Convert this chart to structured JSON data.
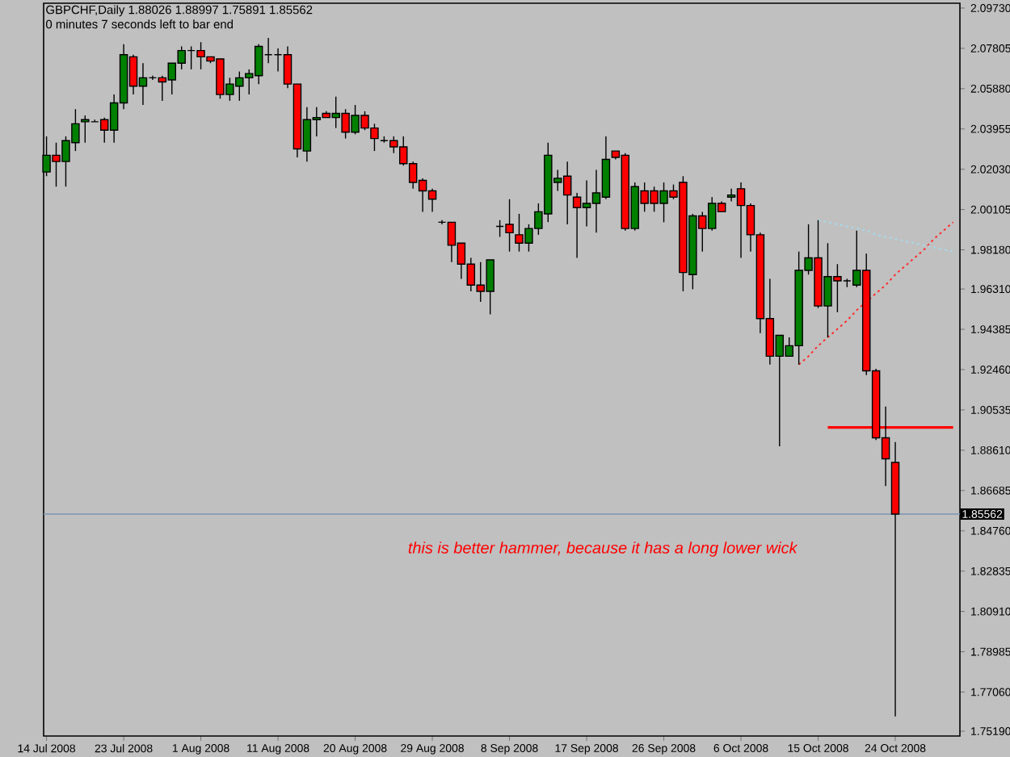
{
  "chart_data": {
    "type": "candlestick",
    "title": "GBPCHF,Daily  1.88026 1.88997 1.75891 1.85562",
    "subtitle": "0 minutes 7 seconds left to bar end",
    "categories": [
      "14 Jul 2008",
      null,
      null,
      null,
      null,
      null,
      null,
      null,
      "23 Jul 2008",
      null,
      null,
      null,
      null,
      null,
      null,
      null,
      "1 Aug 2008",
      null,
      null,
      null,
      null,
      null,
      null,
      null,
      "11 Aug 2008",
      null,
      null,
      null,
      null,
      null,
      null,
      null,
      "20 Aug 2008",
      null,
      null,
      null,
      null,
      null,
      null,
      null,
      "29 Aug 2008",
      null,
      null,
      null,
      null,
      null,
      null,
      null,
      "8 Sep 2008",
      null,
      null,
      null,
      null,
      null,
      null,
      null,
      "17 Sep 2008",
      null,
      null,
      null,
      null,
      null,
      null,
      null,
      "26 Sep 2008",
      null,
      null,
      null,
      null,
      null,
      null,
      null,
      "6 Oct 2008",
      null,
      null,
      null,
      null,
      null,
      null,
      null,
      "15 Oct 2008",
      null,
      null,
      null,
      null,
      null,
      null,
      null,
      "24 Oct 2008",
      null,
      null,
      null,
      null,
      null,
      null
    ],
    "ohlc": [
      [
        2.019,
        2.036,
        2.017,
        2.027
      ],
      [
        2.027,
        2.033,
        2.012,
        2.024
      ],
      [
        2.024,
        2.036,
        2.012,
        2.034
      ],
      [
        2.033,
        2.049,
        2.029,
        2.042
      ],
      [
        2.043,
        2.046,
        2.033,
        2.044
      ],
      [
        2.043,
        2.044,
        2.043,
        2.043
      ],
      [
        2.044,
        2.045,
        2.033,
        2.039
      ],
      [
        2.039,
        2.056,
        2.033,
        2.052
      ],
      [
        2.052,
        2.08,
        2.049,
        2.075
      ],
      [
        2.074,
        2.075,
        2.056,
        2.06
      ],
      [
        2.06,
        2.071,
        2.051,
        2.064
      ],
      [
        2.064,
        2.065,
        2.063,
        2.064
      ],
      [
        2.064,
        2.065,
        2.053,
        2.062
      ],
      [
        2.063,
        2.071,
        2.056,
        2.071
      ],
      [
        2.071,
        2.079,
        2.068,
        2.077
      ],
      [
        2.077,
        2.079,
        2.068,
        2.077
      ],
      [
        2.077,
        2.081,
        2.068,
        2.074
      ],
      [
        2.074,
        2.074,
        2.071,
        2.072
      ],
      [
        2.073,
        2.073,
        2.054,
        2.056
      ],
      [
        2.056,
        2.064,
        2.053,
        2.061
      ],
      [
        2.06,
        2.067,
        2.053,
        2.064
      ],
      [
        2.064,
        2.068,
        2.056,
        2.066
      ],
      [
        2.065,
        2.08,
        2.061,
        2.079
      ],
      [
        2.075,
        2.083,
        2.071,
        2.075
      ],
      [
        2.075,
        2.078,
        2.067,
        2.075
      ],
      [
        2.075,
        2.079,
        2.059,
        2.061
      ],
      [
        2.061,
        2.061,
        2.026,
        2.03
      ],
      [
        2.029,
        2.05,
        2.024,
        2.044
      ],
      [
        2.044,
        2.05,
        2.036,
        2.045
      ],
      [
        2.047,
        2.048,
        2.045,
        2.045
      ],
      [
        2.045,
        2.055,
        2.04,
        2.047
      ],
      [
        2.047,
        2.049,
        2.035,
        2.038
      ],
      [
        2.038,
        2.051,
        2.037,
        2.046
      ],
      [
        2.046,
        2.048,
        2.039,
        2.04
      ],
      [
        2.04,
        2.042,
        2.029,
        2.035
      ],
      [
        2.034,
        2.036,
        2.033,
        2.034
      ],
      [
        2.034,
        2.036,
        2.028,
        2.031
      ],
      [
        2.031,
        2.036,
        2.022,
        2.023
      ],
      [
        2.023,
        2.024,
        2.011,
        2.014
      ],
      [
        2.015,
        2.016,
        2.0,
        2.01
      ],
      [
        2.01,
        2.011,
        2.0,
        2.006
      ],
      [
        1.995,
        1.996,
        1.994,
        1.995
      ],
      [
        1.995,
        1.995,
        1.976,
        1.984
      ],
      [
        1.985,
        1.985,
        1.968,
        1.975
      ],
      [
        1.975,
        1.978,
        1.962,
        1.965
      ],
      [
        1.965,
        1.976,
        1.957,
        1.962
      ],
      [
        1.962,
        1.977,
        1.951,
        1.977
      ],
      [
        1.993,
        1.996,
        1.988,
        1.993
      ],
      [
        1.994,
        2.006,
        1.981,
        1.99
      ],
      [
        1.989,
        1.999,
        1.981,
        1.985
      ],
      [
        1.985,
        1.994,
        1.981,
        1.992
      ],
      [
        1.992,
        2.004,
        1.989,
        2.0
      ],
      [
        1.999,
        2.033,
        1.995,
        2.027
      ],
      [
        2.014,
        2.02,
        2.01,
        2.016
      ],
      [
        2.017,
        2.024,
        1.994,
        2.008
      ],
      [
        2.007,
        2.009,
        1.978,
        2.002
      ],
      [
        2.002,
        2.015,
        1.993,
        2.004
      ],
      [
        2.004,
        2.02,
        1.99,
        2.009
      ],
      [
        2.007,
        2.036,
        2.006,
        2.025
      ],
      [
        2.029,
        2.029,
        2.025,
        2.026
      ],
      [
        2.027,
        2.028,
        1.991,
        1.992
      ],
      [
        1.992,
        2.014,
        1.991,
        2.012
      ],
      [
        2.01,
        2.014,
        2.0,
        2.004
      ],
      [
        2.01,
        2.012,
        2.0,
        2.004
      ],
      [
        2.004,
        2.014,
        1.995,
        2.01
      ],
      [
        2.01,
        2.013,
        2.006,
        2.007
      ],
      [
        2.014,
        2.017,
        1.962,
        1.971
      ],
      [
        1.97,
        1.999,
        1.963,
        1.998
      ],
      [
        1.998,
        2.0,
        1.981,
        1.992
      ],
      [
        1.992,
        2.007,
        1.991,
        2.004
      ],
      [
        2.004,
        2.005,
        2.0,
        2.0
      ],
      [
        2.007,
        2.011,
        2.005,
        2.008
      ],
      [
        2.011,
        2.014,
        1.978,
        2.003
      ],
      [
        2.003,
        2.004,
        1.981,
        1.989
      ],
      [
        1.989,
        1.99,
        1.942,
        1.949
      ],
      [
        1.949,
        1.968,
        1.927,
        1.931
      ],
      [
        1.931,
        1.941,
        1.888,
        1.941
      ],
      [
        1.931,
        1.94,
        1.931,
        1.936
      ],
      [
        1.936,
        1.981,
        1.927,
        1.972
      ],
      [
        1.972,
        1.994,
        1.97,
        1.978
      ],
      [
        1.978,
        1.996,
        1.954,
        1.955
      ],
      [
        1.955,
        1.985,
        1.94,
        1.969
      ],
      [
        1.969,
        1.975,
        1.952,
        1.967
      ],
      [
        1.967,
        1.968,
        1.964,
        1.967
      ],
      [
        1.965,
        1.991,
        1.964,
        1.972
      ],
      [
        1.972,
        1.98,
        1.922,
        1.924
      ],
      [
        1.924,
        1.925,
        1.891,
        1.892
      ],
      [
        1.892,
        1.907,
        1.869,
        1.882
      ],
      [
        1.88026,
        1.88997,
        1.75891,
        1.85562
      ],
      null,
      null,
      null,
      null,
      null,
      null
    ],
    "colors": [
      "#008000",
      "#ff0000",
      "#008000",
      "#008000",
      "#008000",
      "#000000",
      "#ff0000",
      "#008000",
      "#008000",
      "#ff0000",
      "#008000",
      "#000000",
      "#ff0000",
      "#008000",
      "#008000",
      "#000000",
      "#ff0000",
      "#ff0000",
      "#ff0000",
      "#008000",
      "#008000",
      "#008000",
      "#008000",
      "#000000",
      "#000000",
      "#ff0000",
      "#ff0000",
      "#008000",
      "#008000",
      "#ff0000",
      "#008000",
      "#ff0000",
      "#008000",
      "#ff0000",
      "#ff0000",
      "#000000",
      "#ff0000",
      "#ff0000",
      "#ff0000",
      "#ff0000",
      "#ff0000",
      "#000000",
      "#ff0000",
      "#ff0000",
      "#ff0000",
      "#ff0000",
      "#008000",
      "#000000",
      "#ff0000",
      "#ff0000",
      "#008000",
      "#008000",
      "#008000",
      "#008000",
      "#ff0000",
      "#ff0000",
      "#008000",
      "#008000",
      "#008000",
      "#ff0000",
      "#ff0000",
      "#008000",
      "#ff0000",
      "#ff0000",
      "#008000",
      "#ff0000",
      "#ff0000",
      "#008000",
      "#ff0000",
      "#008000",
      "#ff0000",
      "#008000",
      "#ff0000",
      "#ff0000",
      "#ff0000",
      "#ff0000",
      "#008000",
      "#008000",
      "#008000",
      "#008000",
      "#ff0000",
      "#008000",
      "#ff0000",
      "#000000",
      "#008000",
      "#ff0000",
      "#ff0000",
      "#ff0000",
      "#ff0000",
      null,
      null,
      null,
      null,
      null,
      null
    ],
    "series": [
      {
        "type": "line",
        "values": [
          null,
          null,
          null,
          null,
          null,
          null,
          null,
          null,
          null,
          null,
          null,
          null,
          null,
          null,
          null,
          null,
          null,
          null,
          null,
          null,
          null,
          null,
          null,
          null,
          null,
          null,
          null,
          null,
          null,
          null,
          null,
          null,
          null,
          null,
          null,
          null,
          null,
          null,
          null,
          null,
          null,
          null,
          null,
          null,
          null,
          null,
          null,
          null,
          null,
          null,
          null,
          null,
          null,
          null,
          null,
          null,
          null,
          null,
          null,
          null,
          null,
          null,
          null,
          null,
          null,
          null,
          null,
          null,
          null,
          null,
          null,
          null,
          null,
          null,
          null,
          null,
          null,
          null,
          1.927,
          1.931,
          1.936,
          1.94,
          1.944,
          1.948,
          1.953,
          1.957,
          1.961,
          1.965,
          1.97,
          1.974,
          1.978,
          1.982,
          1.987,
          1.991,
          1.995
        ],
        "color": "#ff3030",
        "line_style": "dotted"
      },
      {
        "type": "line",
        "values": [
          null,
          null,
          null,
          null,
          null,
          null,
          null,
          null,
          null,
          null,
          null,
          null,
          null,
          null,
          null,
          null,
          null,
          null,
          null,
          null,
          null,
          null,
          null,
          null,
          null,
          null,
          null,
          null,
          null,
          null,
          null,
          null,
          null,
          null,
          null,
          null,
          null,
          null,
          null,
          null,
          null,
          null,
          null,
          null,
          null,
          null,
          null,
          null,
          null,
          null,
          null,
          null,
          null,
          null,
          null,
          null,
          null,
          null,
          null,
          null,
          null,
          null,
          null,
          null,
          null,
          null,
          null,
          null,
          null,
          null,
          null,
          null,
          null,
          null,
          null,
          null,
          null,
          null,
          null,
          null,
          1.996,
          1.995,
          1.994,
          1.993,
          1.992,
          1.991,
          1.989,
          1.988,
          1.987,
          1.986,
          1.985,
          1.984,
          1.983,
          1.982,
          1.981
        ],
        "color": "#a8d8e8",
        "line_style": "dotted"
      },
      {
        "type": "line",
        "values": [
          null,
          null,
          null,
          null,
          null,
          null,
          null,
          null,
          null,
          null,
          null,
          null,
          null,
          null,
          null,
          null,
          null,
          null,
          null,
          null,
          null,
          null,
          null,
          null,
          null,
          null,
          null,
          null,
          null,
          null,
          null,
          null,
          null,
          null,
          null,
          null,
          null,
          null,
          null,
          null,
          null,
          null,
          null,
          null,
          null,
          null,
          null,
          null,
          null,
          null,
          null,
          null,
          null,
          null,
          null,
          null,
          null,
          null,
          null,
          null,
          null,
          null,
          null,
          null,
          null,
          null,
          null,
          null,
          null,
          null,
          null,
          null,
          null,
          null,
          null,
          null,
          null,
          null,
          null,
          null,
          null,
          1.897,
          1.897,
          1.897,
          1.897,
          1.897,
          1.897,
          1.897,
          1.897,
          1.897,
          1.897,
          1.897,
          1.897,
          1.897,
          1.897
        ],
        "color": "#ff0000",
        "line_style": "solid"
      }
    ],
    "ylim": [
      1.7496,
      2.0996
    ],
    "yticks": [
      {
        "value": 2.0973,
        "label": "2.09730"
      },
      {
        "value": 2.07805,
        "label": "2.07805"
      },
      {
        "value": 2.0588,
        "label": "2.05880"
      },
      {
        "value": 2.03955,
        "label": "2.03955"
      },
      {
        "value": 2.0203,
        "label": "2.02030"
      },
      {
        "value": 2.00105,
        "label": "2.00105"
      },
      {
        "value": 1.9818,
        "label": "1.98180"
      },
      {
        "value": 1.9631,
        "label": "1.96310"
      },
      {
        "value": 1.94385,
        "label": "1.94385"
      },
      {
        "value": 1.9246,
        "label": "1.92460"
      },
      {
        "value": 1.90535,
        "label": "1.90535"
      },
      {
        "value": 1.8861,
        "label": "1.88610"
      },
      {
        "value": 1.86685,
        "label": "1.86685"
      },
      {
        "value": 1.8476,
        "label": "1.84760"
      },
      {
        "value": 1.82835,
        "label": "1.82835"
      },
      {
        "value": 1.8091,
        "label": "1.80910"
      },
      {
        "value": 1.78985,
        "label": "1.78985"
      },
      {
        "value": 1.7706,
        "label": "1.77060"
      },
      {
        "value": 1.7519,
        "label": "1.75190"
      }
    ],
    "ref_lines": [
      {
        "axis": "y",
        "value": 1.85562,
        "label": "1.85562",
        "color": "#7a96b4"
      }
    ],
    "annotations": [
      "this is better hammer, because it has a long lower wick"
    ]
  }
}
